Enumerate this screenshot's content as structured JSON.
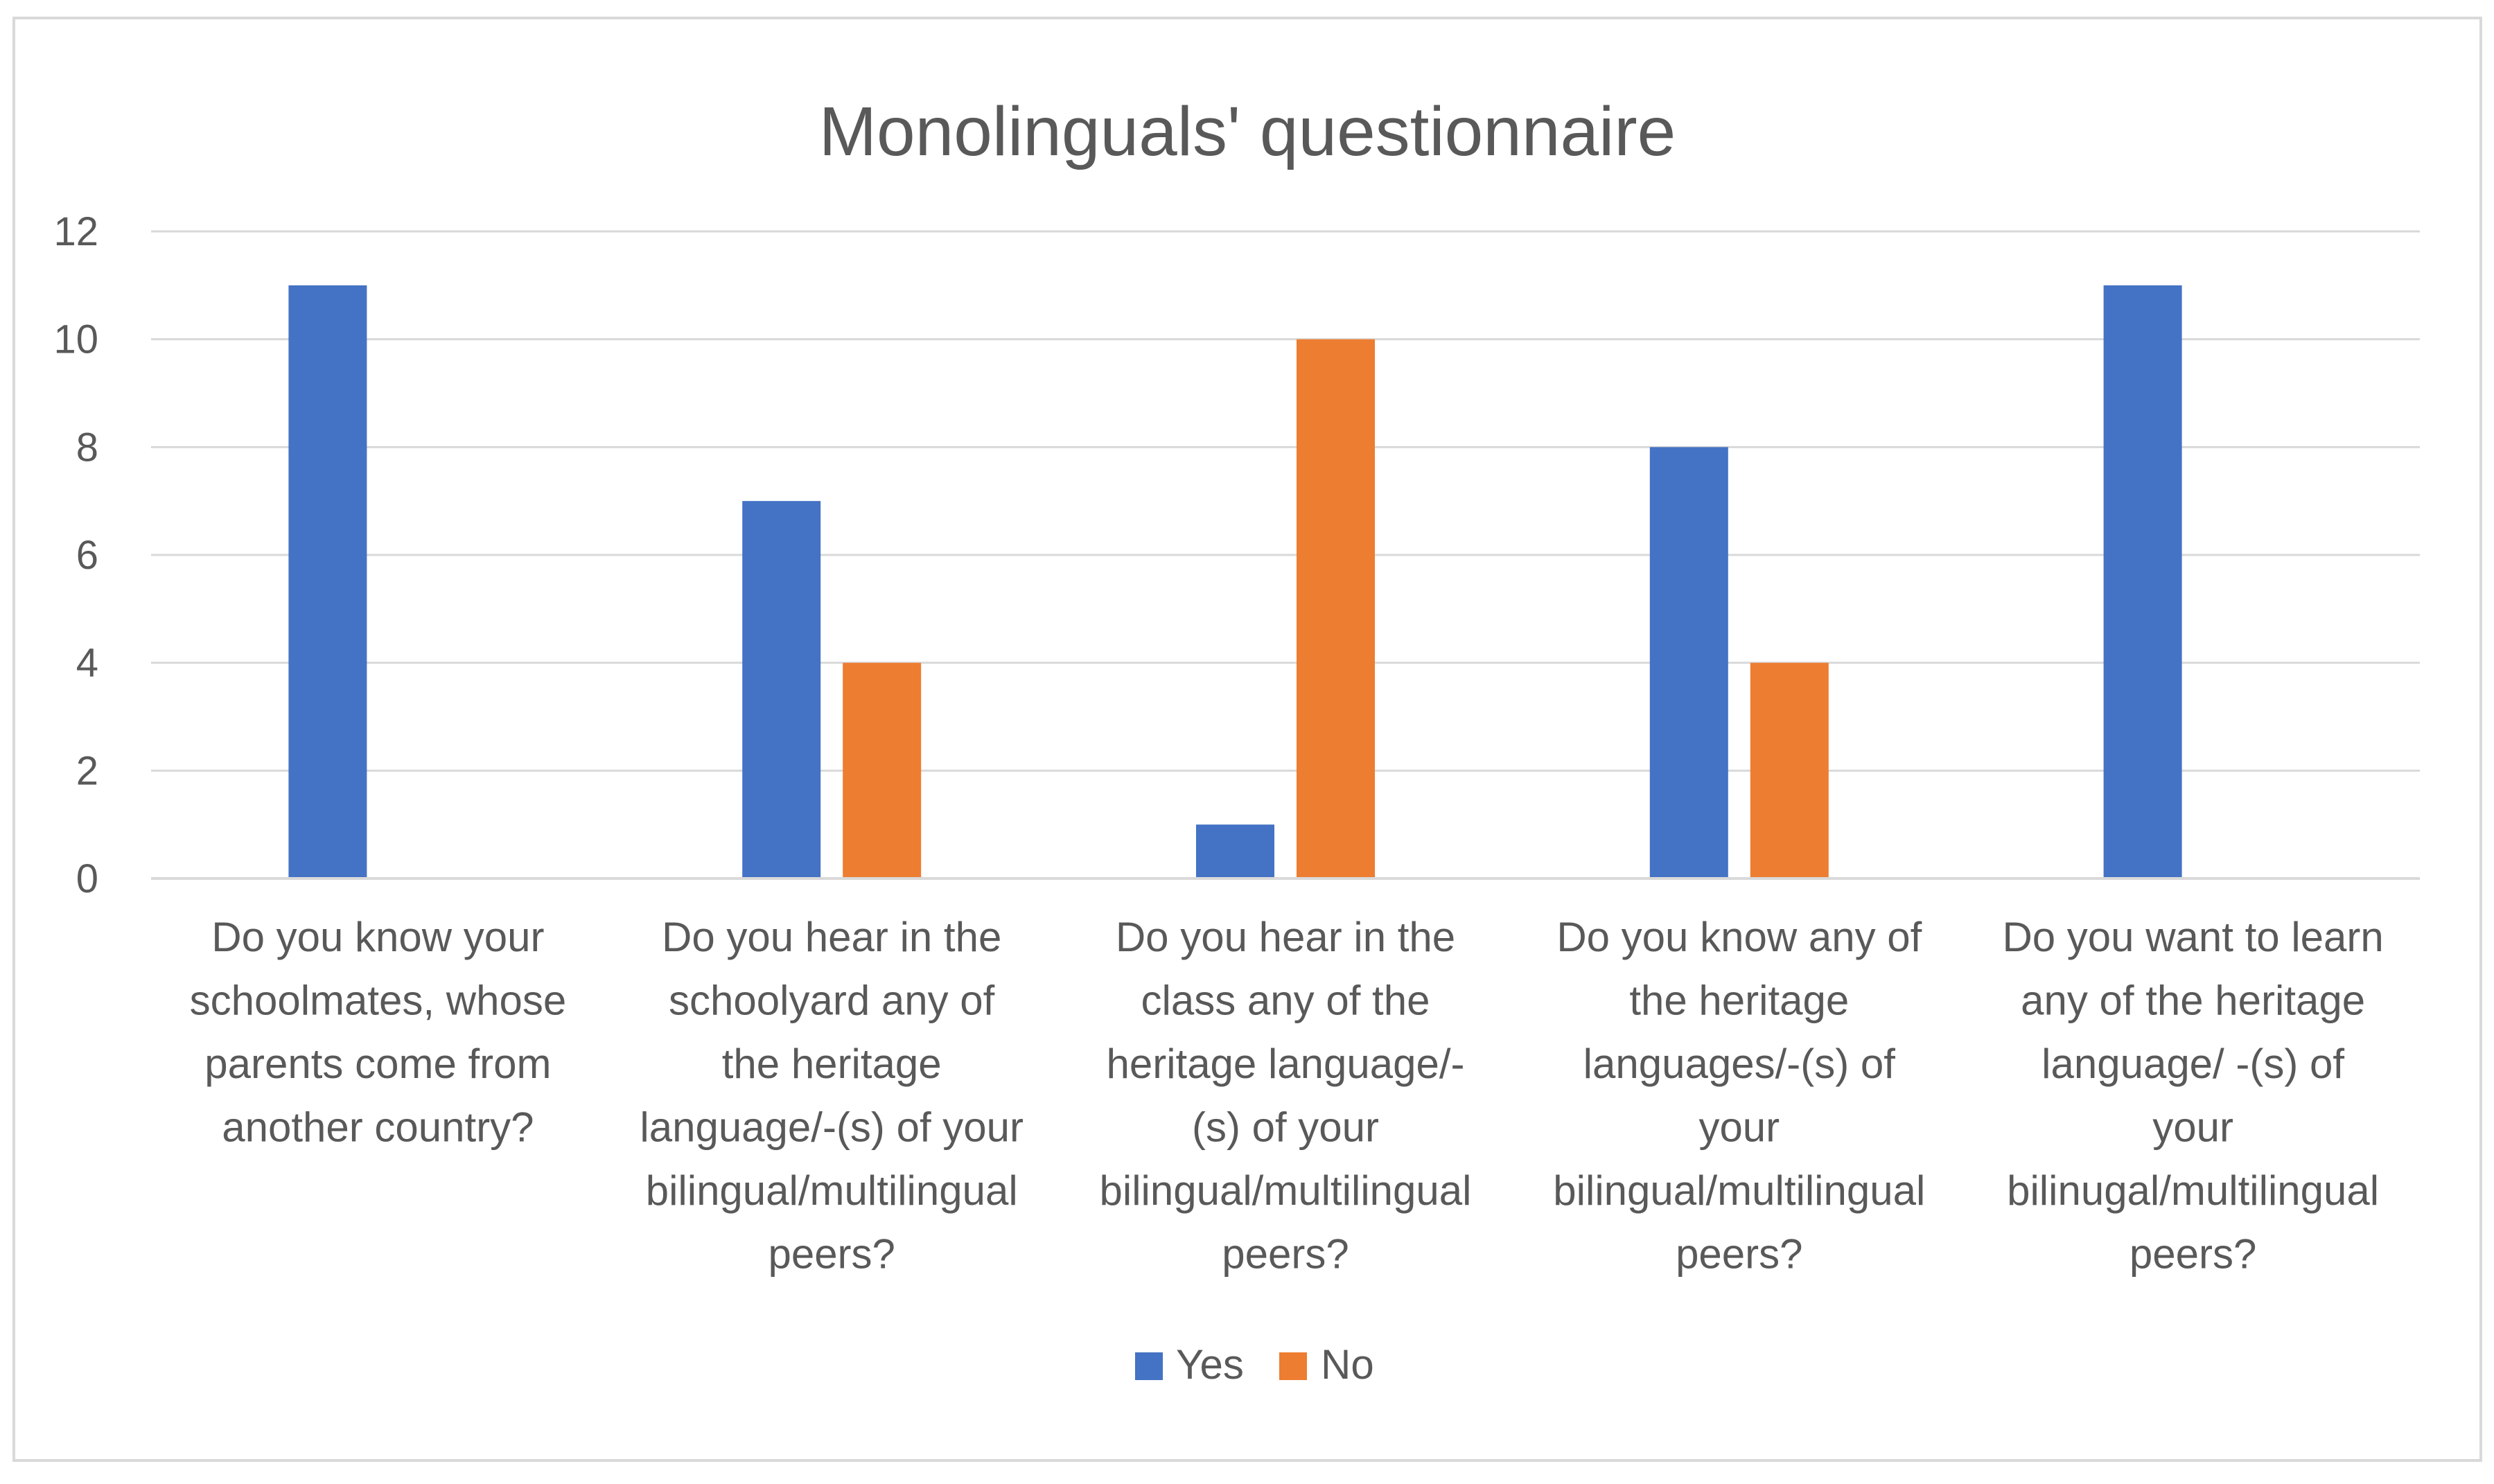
{
  "chart_data": {
    "type": "bar",
    "title": "Monolinguals' questionnaire",
    "xlabel": "",
    "ylabel": "",
    "ylim": [
      0,
      12
    ],
    "yticks": [
      0,
      2,
      4,
      6,
      8,
      10,
      12
    ],
    "grid": true,
    "legend_position": "bottom",
    "categories": [
      "Do you know your schoolmates, whose parents come from another country?",
      "Do you hear in the schoolyard any of the heritage language/-(s) of your bilingual/multilingual peers?",
      "Do you hear in the class any of the heritage language/-(s) of your bilingual/multilingual peers?",
      "Do you know any of the heritage languages/-(s) of your bilingual/multilingual peers?",
      "Do you want to learn any of the heritage language/ -(s) of your bilinugal/multilingual peers?"
    ],
    "category_lines": [
      [
        "Do you know your",
        "schoolmates, whose",
        "parents come from",
        "another country?"
      ],
      [
        "Do you hear in the",
        "schoolyard any of",
        "the heritage",
        "language/-(s) of your",
        "bilingual/multilingual",
        "peers?"
      ],
      [
        "Do you hear in the",
        "class any of the",
        "heritage language/-",
        "(s) of your",
        "bilingual/multilingual",
        "peers?"
      ],
      [
        "Do you know any of",
        "the heritage",
        "languages/-(s) of",
        "your",
        "bilingual/multilingual",
        "peers?"
      ],
      [
        "Do you want to learn",
        "any of the heritage",
        "language/ -(s) of",
        "your",
        "bilinugal/multilingual",
        "peers?"
      ]
    ],
    "series": [
      {
        "name": "Yes",
        "color": "#4472c4",
        "values": [
          11,
          7,
          1,
          8,
          11
        ]
      },
      {
        "name": "No",
        "color": "#ed7d31",
        "values": [
          0,
          4,
          10,
          4,
          0
        ]
      }
    ]
  }
}
